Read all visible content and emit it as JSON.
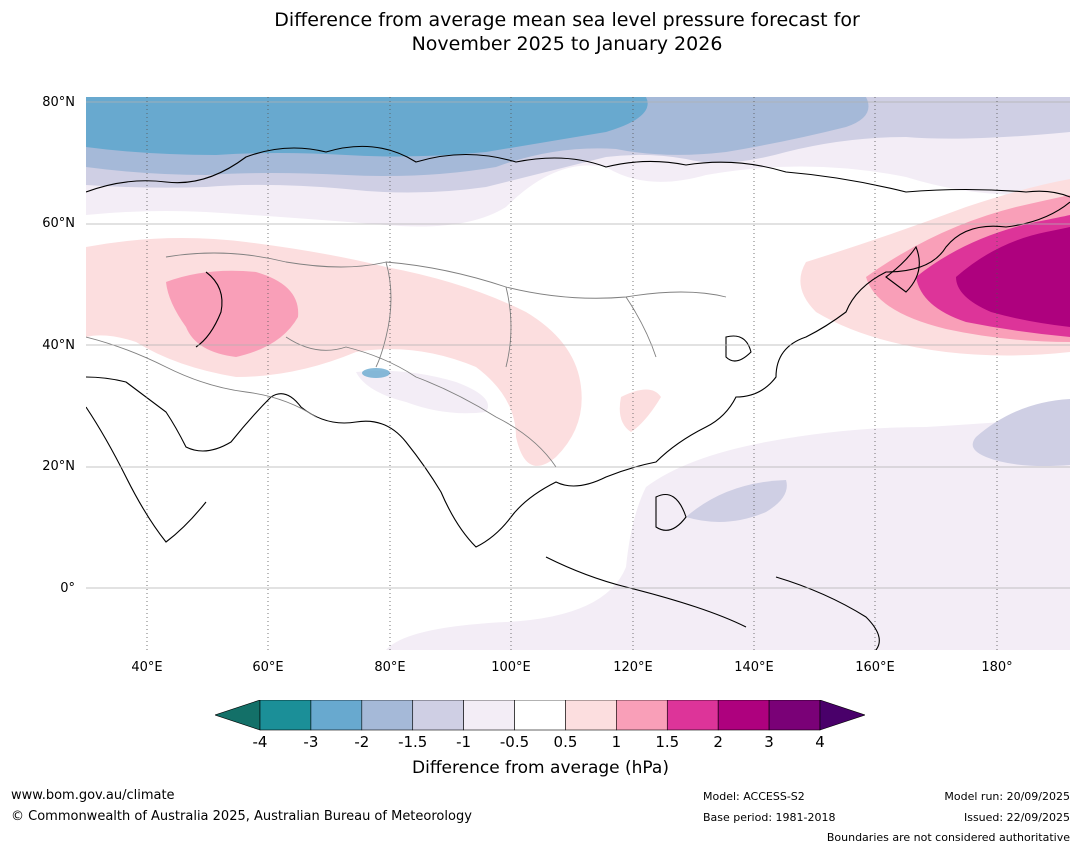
{
  "title": {
    "line1": "Difference from average mean sea level pressure forecast for",
    "line2": "November 2025 to January 2026"
  },
  "map": {
    "lat_labels": [
      "80°N",
      "60°N",
      "40°N",
      "20°N",
      "0°"
    ],
    "lon_labels": [
      "40°E",
      "60°E",
      "80°E",
      "100°E",
      "120°E",
      "140°E",
      "160°E",
      "180°"
    ]
  },
  "colorbar": {
    "ticks": [
      "-4",
      "-3",
      "-2",
      "-1.5",
      "-1",
      "-0.5",
      "0.5",
      "1",
      "1.5",
      "2",
      "3",
      "4"
    ],
    "colors": [
      "#137068",
      "#1b8f98",
      "#68a9cf",
      "#a5b9d8",
      "#cfcfe4",
      "#f3edf6",
      "#ffffff",
      "#fcdedf",
      "#f99fb8",
      "#dd3499",
      "#ae017e",
      "#7a0177",
      "#49006a"
    ],
    "label": "Difference from average (hPa)"
  },
  "footer": {
    "website": "www.bom.gov.au/climate",
    "copyright": "© Commonwealth of Australia 2025, Australian Bureau of Meteorology",
    "model": "Model: ACCESS-S2",
    "base_period": "Base period: 1981-2018",
    "model_run": "Model run: 20/09/2025",
    "issued": "Issued: 22/09/2025",
    "boundaries": "Boundaries are not considered authoritative"
  }
}
